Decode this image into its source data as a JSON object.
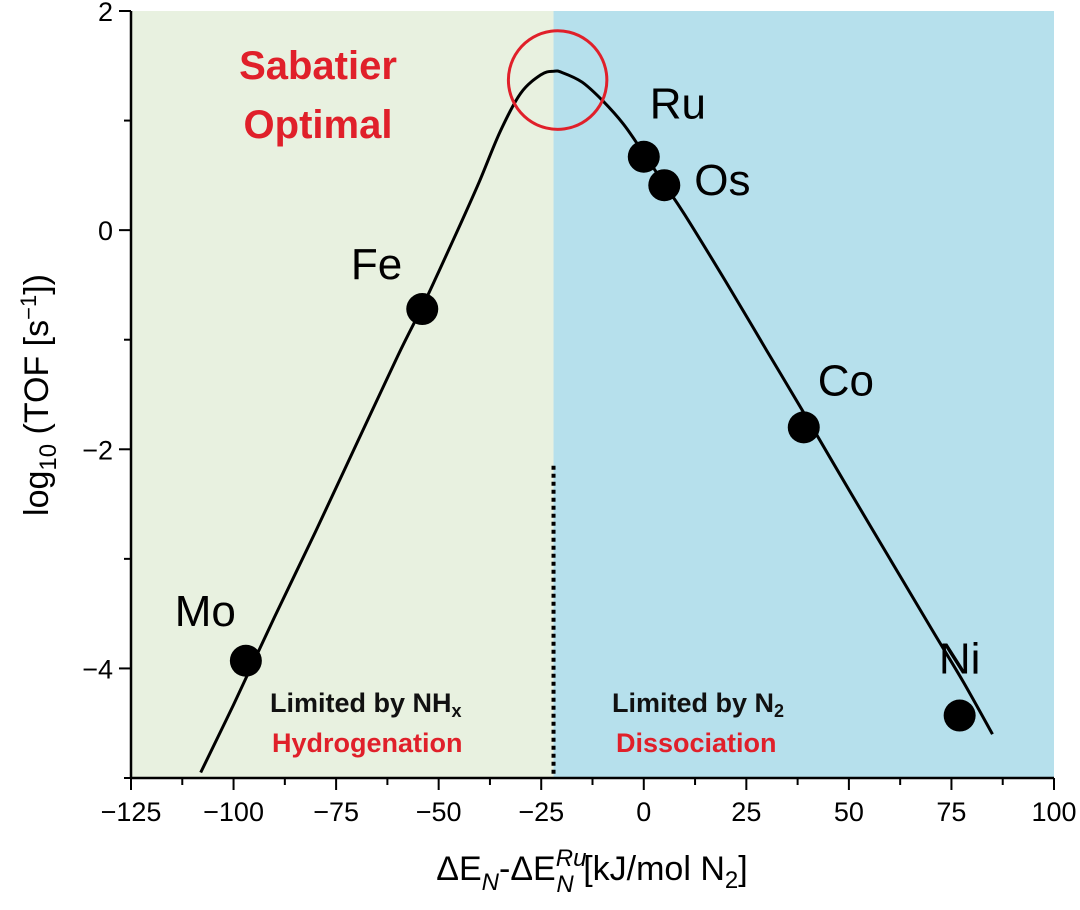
{
  "chart_data": {
    "type": "line",
    "xlabel": {
      "base": "ΔE",
      "sub1": "N",
      "mid": "-ΔE",
      "sup2": "Ru",
      "sub2": "N",
      "units": " [kJ/mol N",
      "unit_sub": "2",
      "close": "]"
    },
    "ylabel": {
      "base": "log",
      "sub": "10",
      "mid": " (TOF [s",
      "sup": "−1",
      "close": "])"
    },
    "xlim": [
      -125,
      100
    ],
    "ylim": [
      -5,
      2
    ],
    "x_ticks": [
      -125,
      -100,
      -75,
      -50,
      -25,
      0,
      25,
      50,
      75,
      100
    ],
    "x_tick_labels": [
      "−125",
      "−100",
      "−75",
      "−50",
      "−25",
      "0",
      "25",
      "50",
      "75",
      "100"
    ],
    "y_ticks": [
      2,
      0,
      -2,
      -4
    ],
    "y_tick_labels": [
      "2",
      "0",
      "−2",
      "−4"
    ],
    "grid": false,
    "curve": {
      "x": [
        -108,
        -100,
        -90,
        -80,
        -70,
        -60,
        -54,
        -50,
        -45,
        -40,
        -35,
        -30,
        -25,
        -22,
        -20,
        -15,
        -10,
        -5,
        0,
        5,
        10,
        20,
        30,
        40,
        50,
        60,
        70,
        78,
        85
      ],
      "y": [
        -4.95,
        -4.33,
        -3.53,
        -2.75,
        -1.95,
        -1.15,
        -0.7,
        -0.38,
        0.03,
        0.45,
        0.9,
        1.25,
        1.42,
        1.45,
        1.44,
        1.35,
        1.18,
        0.97,
        0.7,
        0.42,
        0.14,
        -0.47,
        -1.1,
        -1.73,
        -2.37,
        -3.0,
        -3.63,
        -4.13,
        -4.6
      ]
    },
    "points": [
      {
        "label": "Mo",
        "x": -97,
        "y": -3.93
      },
      {
        "label": "Fe",
        "x": -54,
        "y": -0.72
      },
      {
        "label": "Ru",
        "x": 0,
        "y": 0.67
      },
      {
        "label": "Os",
        "x": 5,
        "y": 0.41
      },
      {
        "label": "Co",
        "x": 39,
        "y": -1.8
      },
      {
        "label": "Ni",
        "x": 77,
        "y": -4.43
      }
    ],
    "regions": [
      {
        "x_from": -125,
        "x_to": -22,
        "color": "#e8f1e0",
        "title": "Limited by NH",
        "title_sub": "x",
        "subtitle": "Hydrogenation"
      },
      {
        "x_from": -22,
        "x_to": 100,
        "color": "#b6e0ec",
        "title": "Limited by N",
        "title_sub": "2",
        "subtitle": "Dissociation"
      }
    ],
    "divider": {
      "x": -22,
      "y_from": -5,
      "y_to": -2.15
    },
    "annotation": {
      "line1": "Sabatier",
      "line2": "Optimal",
      "ellipse_center": {
        "x": -21,
        "y": 1.37
      },
      "ellipse_rx": 12,
      "ellipse_ry": 0.45
    },
    "colors": {
      "accent_red": "#e0202a",
      "curve": "#000000",
      "points": "#000000"
    }
  }
}
